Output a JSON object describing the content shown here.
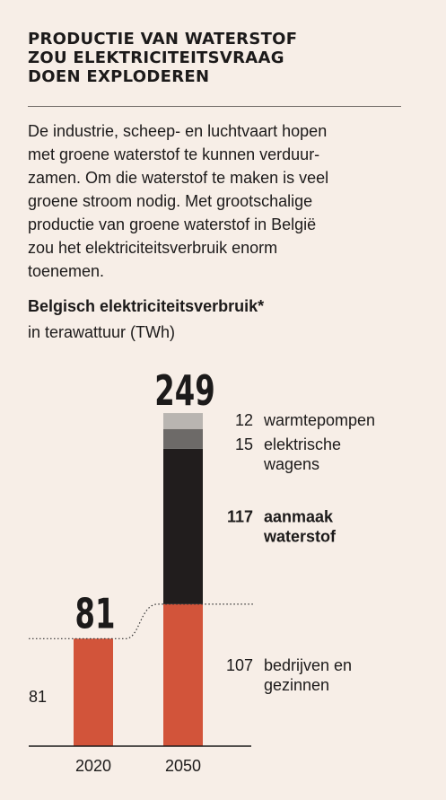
{
  "headline": [
    "PRODUCTIE VAN WATERSTOF",
    "ZOU ELEKTRICITEITSVRAAG",
    "DOEN EXPLODEREN"
  ],
  "intro": [
    "De industrie, scheep- en luchtvaart hopen",
    "met groene waterstof te kunnen verduur-",
    "zamen. Om die waterstof te maken is veel",
    "groene stroom nodig. Met grootschalige",
    "productie van groene waterstof in België",
    "zou het elektriciteitsverbruik enorm",
    "toenemen."
  ],
  "colors": {
    "background": "#f7eee7",
    "bedrijven": "#d2543a",
    "waterstof": "#211d1d",
    "wagens": "#6d6a68",
    "warmtepompen": "#b9b5b1"
  },
  "chart_data": {
    "type": "bar",
    "stacked": true,
    "title": "Belgisch elektriciteitsverbruik*",
    "subtitle": "in terawattuur (TWh)",
    "categories": [
      "2020",
      "2050"
    ],
    "totals": [
      81,
      249
    ],
    "total_labels": [
      "81",
      "249"
    ],
    "series": [
      {
        "name": "bedrijven en gezinnen",
        "label_lines": [
          "bedrijven en",
          "gezinnen"
        ],
        "values": [
          81,
          107
        ],
        "color": "#d2543a",
        "bold": false
      },
      {
        "name": "aanmaak waterstof",
        "label_lines": [
          "aanmaak",
          "waterstof"
        ],
        "values": [
          0,
          117
        ],
        "color": "#211d1d",
        "bold": true
      },
      {
        "name": "elektrische wagens",
        "label_lines": [
          "elektrische",
          "wagens"
        ],
        "values": [
          0,
          15
        ],
        "color": "#6d6a68",
        "bold": false
      },
      {
        "name": "warmtepompen",
        "label_lines": [
          "warmtepompen"
        ],
        "values": [
          0,
          12
        ],
        "color": "#b9b5b1",
        "bold": false
      }
    ],
    "left_value_label": "81",
    "ylim": [
      0,
      249
    ],
    "grid": false,
    "legend": "right"
  }
}
